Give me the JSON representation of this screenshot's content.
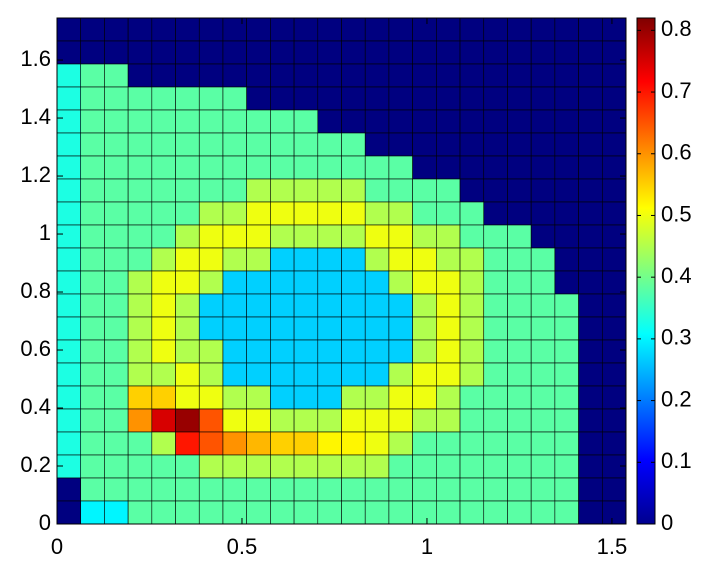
{
  "chart_data": {
    "type": "heatmap",
    "colormap": "jet",
    "xlim": [
      0,
      1.538
    ],
    "ylim": [
      0,
      1.745
    ],
    "clim": [
      0,
      0.82
    ],
    "xticks": [
      0,
      0.5,
      1,
      1.5
    ],
    "yticks": [
      0,
      0.2,
      0.4,
      0.6,
      0.8,
      1,
      1.2,
      1.4,
      1.6
    ],
    "cticks": [
      0,
      0.1,
      0.2,
      0.3,
      0.4,
      0.5,
      0.6,
      0.7,
      0.8
    ],
    "z": [
      [
        0,
        0,
        0,
        0,
        0,
        0,
        0,
        0,
        0,
        0,
        0,
        0,
        0,
        0,
        0,
        0,
        0,
        0,
        0,
        0,
        0,
        0,
        0,
        0
      ],
      [
        0,
        0,
        0,
        0,
        0,
        0,
        0,
        0,
        0,
        0,
        0,
        0,
        0,
        0,
        0,
        0,
        0,
        0,
        0,
        0,
        0,
        0,
        0,
        0
      ],
      [
        0.33,
        0.38,
        0.38,
        0,
        0,
        0,
        0,
        0,
        0,
        0,
        0,
        0,
        0,
        0,
        0,
        0,
        0,
        0,
        0,
        0,
        0,
        0,
        0,
        0
      ],
      [
        0.33,
        0.38,
        0.38,
        0.38,
        0.38,
        0.38,
        0.38,
        0.38,
        0,
        0,
        0,
        0,
        0,
        0,
        0,
        0,
        0,
        0,
        0,
        0,
        0,
        0,
        0,
        0
      ],
      [
        0.33,
        0.38,
        0.38,
        0.38,
        0.38,
        0.38,
        0.38,
        0.38,
        0.38,
        0.38,
        0.38,
        0,
        0,
        0,
        0,
        0,
        0,
        0,
        0,
        0,
        0,
        0,
        0,
        0
      ],
      [
        0.33,
        0.38,
        0.38,
        0.38,
        0.38,
        0.38,
        0.38,
        0.38,
        0.38,
        0.38,
        0.38,
        0.38,
        0.38,
        0,
        0,
        0,
        0,
        0,
        0,
        0,
        0,
        0,
        0,
        0
      ],
      [
        0.33,
        0.38,
        0.38,
        0.38,
        0.38,
        0.38,
        0.38,
        0.38,
        0.38,
        0.38,
        0.38,
        0.38,
        0.38,
        0.38,
        0.38,
        0,
        0,
        0,
        0,
        0,
        0,
        0,
        0,
        0
      ],
      [
        0.33,
        0.38,
        0.38,
        0.38,
        0.38,
        0.38,
        0.38,
        0.38,
        0.45,
        0.45,
        0.45,
        0.45,
        0.45,
        0.38,
        0.38,
        0.38,
        0.38,
        0,
        0,
        0,
        0,
        0,
        0,
        0
      ],
      [
        0.33,
        0.38,
        0.38,
        0.38,
        0.38,
        0.38,
        0.45,
        0.45,
        0.5,
        0.5,
        0.5,
        0.5,
        0.5,
        0.45,
        0.45,
        0.38,
        0.38,
        0.38,
        0,
        0,
        0,
        0,
        0,
        0
      ],
      [
        0.33,
        0.38,
        0.38,
        0.38,
        0.38,
        0.45,
        0.5,
        0.5,
        0.5,
        0.45,
        0.45,
        0.45,
        0.45,
        0.5,
        0.5,
        0.45,
        0.45,
        0.38,
        0.38,
        0.38,
        0,
        0,
        0,
        0
      ],
      [
        0.33,
        0.38,
        0.38,
        0.38,
        0.45,
        0.5,
        0.5,
        0.45,
        0.45,
        0.27,
        0.27,
        0.27,
        0.27,
        0.45,
        0.5,
        0.5,
        0.45,
        0.45,
        0.38,
        0.38,
        0.38,
        0,
        0,
        0
      ],
      [
        0.33,
        0.38,
        0.38,
        0.45,
        0.5,
        0.5,
        0.45,
        0.27,
        0.27,
        0.27,
        0.27,
        0.27,
        0.27,
        0.27,
        0.45,
        0.5,
        0.5,
        0.45,
        0.38,
        0.38,
        0.38,
        0,
        0,
        0
      ],
      [
        0.33,
        0.38,
        0.38,
        0.45,
        0.5,
        0.45,
        0.27,
        0.27,
        0.27,
        0.27,
        0.27,
        0.27,
        0.27,
        0.27,
        0.27,
        0.45,
        0.5,
        0.45,
        0.38,
        0.38,
        0.38,
        0.38,
        0,
        0
      ],
      [
        0.33,
        0.38,
        0.38,
        0.45,
        0.5,
        0.45,
        0.27,
        0.27,
        0.27,
        0.27,
        0.27,
        0.27,
        0.27,
        0.27,
        0.27,
        0.45,
        0.5,
        0.45,
        0.38,
        0.38,
        0.38,
        0.38,
        0,
        0
      ],
      [
        0.33,
        0.38,
        0.38,
        0.45,
        0.5,
        0.45,
        0.45,
        0.27,
        0.27,
        0.27,
        0.27,
        0.27,
        0.27,
        0.27,
        0.27,
        0.45,
        0.5,
        0.45,
        0.38,
        0.38,
        0.38,
        0.38,
        0,
        0
      ],
      [
        0.33,
        0.38,
        0.38,
        0.45,
        0.45,
        0.5,
        0.45,
        0.27,
        0.27,
        0.27,
        0.27,
        0.27,
        0.27,
        0.27,
        0.45,
        0.5,
        0.5,
        0.45,
        0.38,
        0.38,
        0.38,
        0.38,
        0,
        0
      ],
      [
        0.33,
        0.38,
        0.38,
        0.55,
        0.55,
        0.5,
        0.5,
        0.45,
        0.45,
        0.27,
        0.27,
        0.27,
        0.45,
        0.45,
        0.5,
        0.5,
        0.45,
        0.38,
        0.38,
        0.38,
        0.38,
        0.38,
        0,
        0
      ],
      [
        0.33,
        0.38,
        0.38,
        0.6,
        0.75,
        0.8,
        0.65,
        0.5,
        0.5,
        0.45,
        0.45,
        0.45,
        0.5,
        0.5,
        0.5,
        0.45,
        0.45,
        0.38,
        0.38,
        0.38,
        0.38,
        0.38,
        0,
        0
      ],
      [
        0.33,
        0.38,
        0.38,
        0.38,
        0.45,
        0.7,
        0.65,
        0.6,
        0.57,
        0.55,
        0.55,
        0.52,
        0.52,
        0.5,
        0.45,
        0.38,
        0.38,
        0.38,
        0.38,
        0.38,
        0.38,
        0.38,
        0,
        0
      ],
      [
        0.33,
        0.38,
        0.38,
        0.38,
        0.38,
        0.38,
        0.45,
        0.45,
        0.45,
        0.45,
        0.45,
        0.45,
        0.45,
        0.45,
        0.38,
        0.38,
        0.38,
        0.38,
        0.38,
        0.38,
        0.38,
        0.38,
        0,
        0
      ],
      [
        0,
        0.38,
        0.38,
        0.38,
        0.38,
        0.38,
        0.38,
        0.38,
        0.38,
        0.38,
        0.38,
        0.38,
        0.38,
        0.38,
        0.38,
        0.38,
        0.38,
        0.38,
        0.38,
        0.38,
        0.38,
        0.38,
        0,
        0
      ],
      [
        0,
        0.3,
        0.3,
        0.38,
        0.38,
        0.38,
        0.38,
        0.38,
        0.38,
        0.38,
        0.38,
        0.38,
        0.38,
        0.38,
        0.38,
        0.38,
        0.38,
        0.38,
        0.38,
        0.38,
        0.38,
        0.38,
        0,
        0
      ]
    ]
  }
}
